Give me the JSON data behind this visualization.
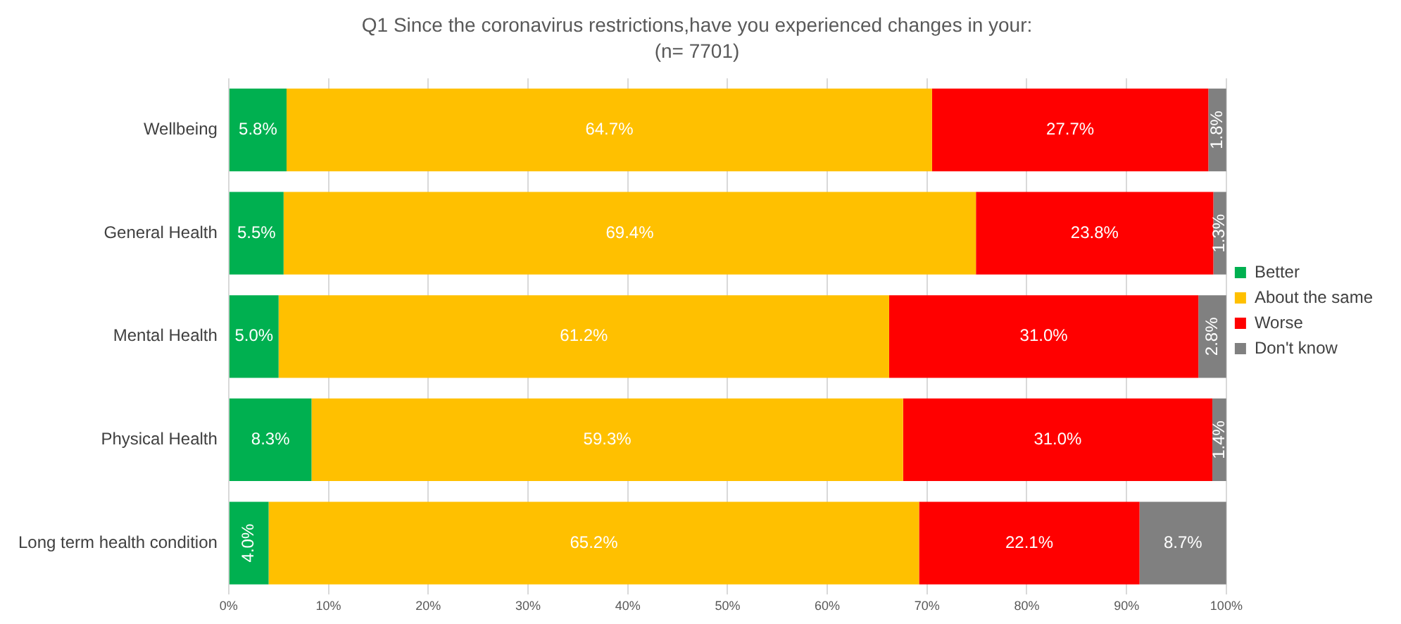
{
  "chart_data": {
    "type": "bar",
    "orientation": "horizontal",
    "stacked": true,
    "title": "Q1 Since the coronavirus restrictions,have you experienced changes in your:",
    "subtitle": "(n= 7701)",
    "categories": [
      "Wellbeing",
      "General Health",
      "Mental Health",
      "Physical Health",
      "Long term health condition"
    ],
    "series": [
      {
        "name": "Better",
        "color": "#00b050",
        "values": [
          5.8,
          5.5,
          5.0,
          8.3,
          4.0
        ],
        "value_labels": [
          "5.8%",
          "5.5%",
          "5.0%",
          "8.3%",
          "4.0%"
        ]
      },
      {
        "name": "About the same",
        "color": "#ffc000",
        "values": [
          64.7,
          69.4,
          61.2,
          59.3,
          65.2
        ],
        "value_labels": [
          "64.7%",
          "69.4%",
          "61.2%",
          "59.3%",
          "65.2%"
        ]
      },
      {
        "name": "Worse",
        "color": "#ff0000",
        "values": [
          27.7,
          23.8,
          31.0,
          31.0,
          22.1
        ],
        "value_labels": [
          "27.7%",
          "23.8%",
          "31.0%",
          "31.0%",
          "22.1%"
        ]
      },
      {
        "name": "Don't know",
        "color": "#808080",
        "values": [
          1.8,
          1.3,
          2.8,
          1.4,
          8.7
        ],
        "value_labels": [
          "1.8%",
          "1.3%",
          "2.8%",
          "1.4%",
          "8.7%"
        ]
      }
    ],
    "xlim": [
      0,
      100
    ],
    "xticks": [
      {
        "value": 0,
        "label": "0%"
      },
      {
        "value": 10,
        "label": "10%"
      },
      {
        "value": 20,
        "label": "20%"
      },
      {
        "value": 30,
        "label": "30%"
      },
      {
        "value": 40,
        "label": "40%"
      },
      {
        "value": 50,
        "label": "50%"
      },
      {
        "value": 60,
        "label": "60%"
      },
      {
        "value": 70,
        "label": "70%"
      },
      {
        "value": 80,
        "label": "80%"
      },
      {
        "value": 90,
        "label": "90%"
      },
      {
        "value": 100,
        "label": "100%"
      }
    ],
    "grid": "x",
    "legend": "right"
  }
}
